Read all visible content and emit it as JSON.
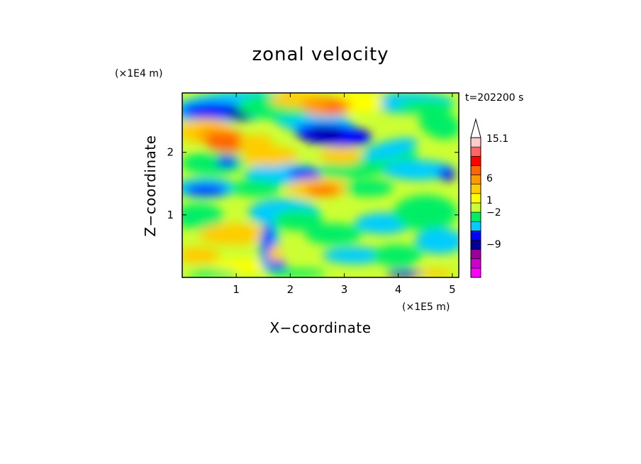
{
  "chart_data": {
    "type": "heatmap",
    "title": "zonal velocity",
    "xlabel": "X−coordinate",
    "ylabel": "Z−coordinate",
    "x_scale_label": "(×1E5 m)",
    "y_scale_label": "(×1E4 m)",
    "time_label": "t=202200 s",
    "xlim": [
      0,
      5.12
    ],
    "ylim": [
      0,
      2.95
    ],
    "x_ticks": [
      1,
      2,
      3,
      4,
      5
    ],
    "y_ticks": [
      1,
      2
    ],
    "x_tick_labels": [
      "1",
      "2",
      "3",
      "4",
      "5"
    ],
    "y_tick_labels": [
      "1",
      "2"
    ],
    "colorbar": {
      "colors": [
        "#ff00ff",
        "#cc00cc",
        "#990099",
        "#000099",
        "#0000ff",
        "#00ccff",
        "#00ee66",
        "#ccff33",
        "#ffff00",
        "#ffcc00",
        "#ff9900",
        "#ff6600",
        "#ff0000",
        "#ff6666",
        "#ffcccc"
      ],
      "labeled_levels": [
        "15.1",
        "6",
        "1",
        "−2",
        "−9"
      ],
      "extend_top": true
    },
    "field_features": [
      {
        "x": 0.3,
        "z": 2.6,
        "value": -9
      },
      {
        "x": 1.0,
        "z": 2.6,
        "value": -9
      },
      {
        "x": 2.2,
        "z": 2.1,
        "value": -9
      },
      {
        "x": 0.4,
        "z": 1.4,
        "value": -9
      },
      {
        "x": 0.8,
        "z": 2.1,
        "value": 6
      },
      {
        "x": 2.3,
        "z": 2.6,
        "value": 6
      },
      {
        "x": 2.6,
        "z": 1.4,
        "value": 6
      },
      {
        "x": 1.6,
        "z": 0.4,
        "value": 6
      },
      {
        "x": 1.5,
        "z": 0.6,
        "value": -9
      },
      {
        "x": 3.7,
        "z": 2.0,
        "value": -2
      },
      {
        "x": 4.8,
        "z": 1.5,
        "value": -2
      },
      {
        "x": 4.4,
        "z": 0.5,
        "value": -2
      }
    ]
  }
}
